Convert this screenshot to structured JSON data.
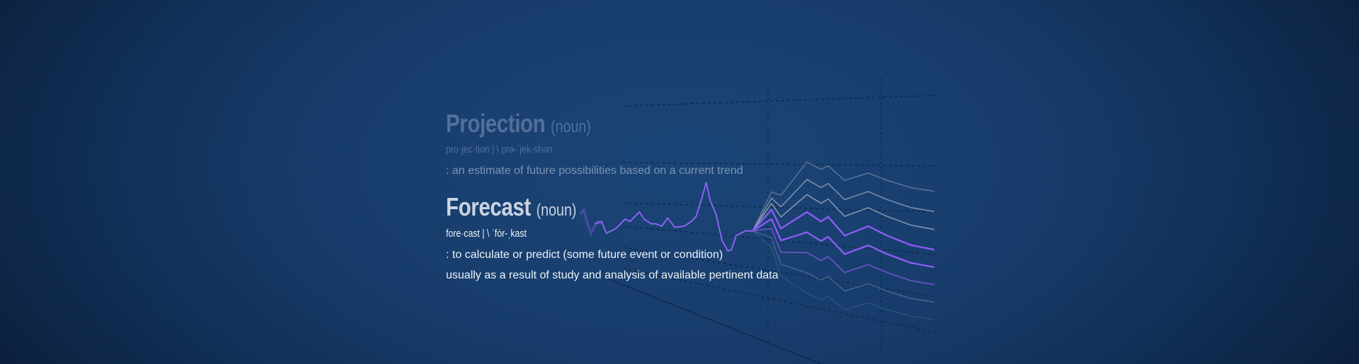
{
  "projection": {
    "word": "Projection",
    "pos": "(noun)",
    "pronunciation": "pro·jec·tion | \\ prə-ˈjek-shən",
    "definition": ": an estimate of future possibilities based on a current trend"
  },
  "forecast": {
    "word": "Forecast",
    "pos": "(noun)",
    "pronunciation": "fore·cast | \\ ˈfȯr-ˌkast",
    "definition_1": ": to calculate or predict (some future event or condition)",
    "definition_2": "usually as a result of study and analysis of available pertinent data"
  },
  "colors": {
    "history_line": "#8b63f0",
    "forecast_purple": "#8a5cf0",
    "forecast_gray": "#9aa6b8",
    "background": "#173c6b"
  }
}
